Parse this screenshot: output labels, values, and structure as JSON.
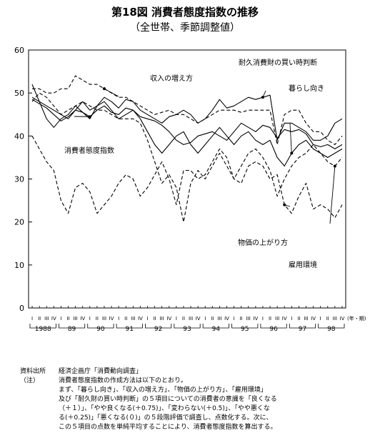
{
  "title": "第18図 消費者態度指数の推移",
  "subtitle": "（全世帯、季節調整値）",
  "chart_data": {
    "type": "line",
    "ylim": [
      0,
      60
    ],
    "yticks": [
      0,
      10,
      20,
      30,
      40,
      50,
      60
    ],
    "x_unit": "(年・期)",
    "quarter_labels": [
      "I",
      "II",
      "III",
      "IV"
    ],
    "years": [
      "1988",
      "89",
      "90",
      "91",
      "92",
      "93",
      "94",
      "95",
      "96",
      "97",
      "98"
    ],
    "n_quarters": 44,
    "series": [
      {
        "name": "消費者態度指数",
        "style": "solid",
        "values": [
          48.5,
          47.5,
          46.5,
          45,
          43.5,
          44.5,
          46,
          45.5,
          44.5,
          46,
          47,
          45.5,
          45,
          46.5,
          46,
          44.5,
          44,
          43.5,
          42.5,
          41,
          39,
          38,
          38.5,
          40,
          40.5,
          41,
          40,
          39,
          41,
          43,
          42,
          41,
          42.5,
          42,
          39.5,
          41.5,
          41,
          41.5,
          40.5,
          38,
          37.5,
          38,
          37,
          38
        ]
      },
      {
        "name": "耐久消費財の買い時判断",
        "style": "solid",
        "values": [
          52,
          48,
          44,
          42,
          44,
          45,
          47,
          45.5,
          44,
          47,
          49,
          48,
          46.5,
          48.5,
          48,
          46,
          45,
          44,
          43,
          44.5,
          45,
          46,
          45,
          43,
          44,
          46,
          48.5,
          46.5,
          47,
          48,
          49,
          48.5,
          49,
          49.5,
          39,
          43,
          43,
          42,
          41,
          39,
          39,
          40,
          43,
          44
        ]
      },
      {
        "name": "暮らし向き",
        "style": "solid",
        "values": [
          49,
          48,
          47,
          46,
          45,
          44,
          46,
          48,
          46,
          47,
          48,
          46,
          44,
          45,
          46,
          44,
          41,
          38,
          36,
          38,
          40,
          41,
          38,
          36,
          38,
          40,
          42,
          40,
          38,
          40,
          41,
          39,
          38,
          39,
          35,
          33,
          36,
          38,
          39,
          37,
          36,
          35,
          36,
          37
        ]
      },
      {
        "name": "収入の増え方",
        "style": "dashed",
        "values": [
          51,
          51,
          50,
          50,
          51,
          51,
          54,
          53,
          52,
          52,
          51,
          50,
          49,
          49,
          48,
          47,
          46,
          45,
          45.5,
          46,
          45,
          45,
          44,
          43,
          44,
          45,
          46,
          46,
          46,
          45.5,
          46,
          46,
          46,
          46,
          38,
          45,
          46,
          46,
          43,
          41,
          41,
          39,
          38,
          40
        ]
      },
      {
        "name": "物価の上がり方",
        "style": "dashed",
        "values": [
          40,
          37,
          34,
          32,
          25,
          22,
          28,
          29,
          27,
          22,
          24,
          26,
          29,
          31,
          30,
          26,
          28,
          31,
          34,
          30,
          24,
          32,
          32,
          30,
          31,
          34,
          37,
          35,
          30,
          29,
          33,
          34,
          33,
          30,
          31,
          24,
          22,
          26,
          29,
          23,
          24,
          23,
          21,
          24
        ]
      },
      {
        "name": "雇用環境",
        "style": "dashed",
        "values": [
          48,
          50,
          49,
          47,
          45,
          46,
          47,
          48,
          47,
          46,
          46,
          45,
          44,
          44,
          44,
          43,
          39,
          34,
          29,
          31,
          28,
          20,
          29,
          32,
          30,
          33,
          36,
          33,
          30,
          33,
          36,
          37,
          35,
          32,
          26,
          30,
          33,
          35,
          36,
          38,
          36,
          34,
          33,
          35
        ]
      }
    ],
    "annotations": [
      {
        "text": "耐久消費財の買い時判断",
        "series": 1
      },
      {
        "text": "収入の増え方",
        "series": 3
      },
      {
        "text": "暮らし向き",
        "series": 2
      },
      {
        "text": "消費者態度指数",
        "series": 0
      },
      {
        "text": "物価の上がり方",
        "series": 4
      },
      {
        "text": "雇用環境",
        "series": 5
      }
    ]
  },
  "notes": {
    "source_label": "資料出所",
    "source_text": "経済企画庁「消費動向調査」",
    "note_label": "（注）",
    "note_lines": [
      "消費者態度指数の作成方法は以下のとおり。",
      "まず、「暮らし向き」、「収入の増え方」、「物価の上がり方」、「雇用環境」",
      "及び「耐久財の買い時判断」の５項目についての消費者の意識を「良くなる",
      "（＋１）」、「やや良くなる(＋0.75)」、「変わらない(＋0.5)」、「やや悪くな",
      "る(＋0.25)」「悪くなる(０)」の５段階評価で調査し、点数化する。次に、",
      "この５項目の点数を単純平均することにより、消費者態度指数を算出する。"
    ]
  }
}
